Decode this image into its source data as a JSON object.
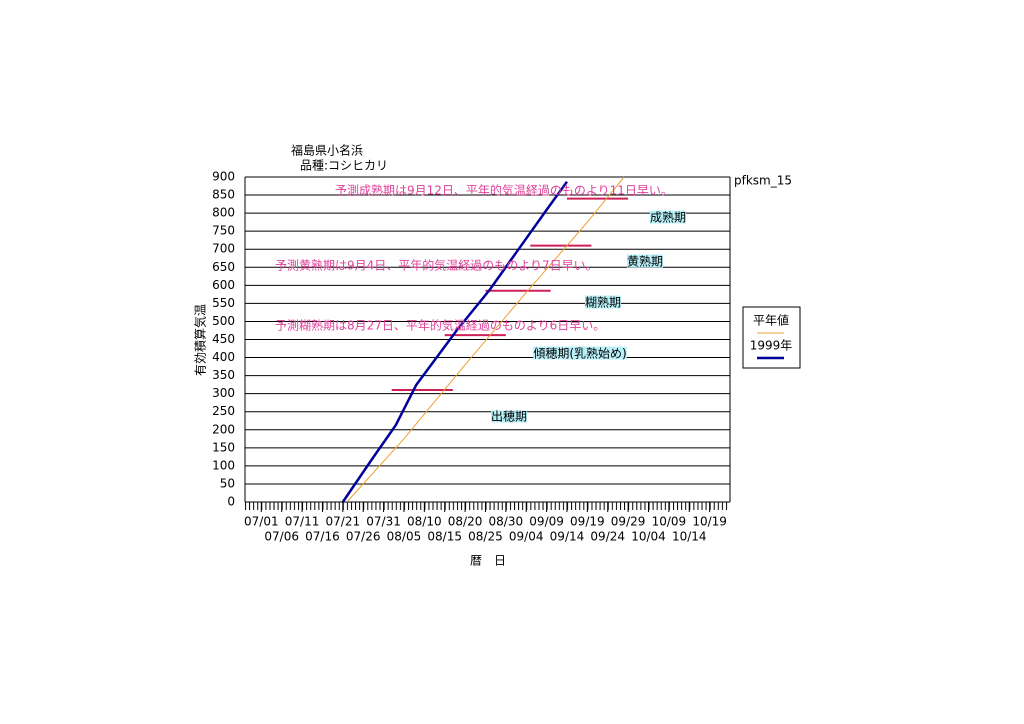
{
  "chart_data": {
    "type": "line",
    "title": "福島県小名浜",
    "subtitle": "品種:コシヒカリ",
    "code": "pfksm_15",
    "y_label": "有効積算気温",
    "x_label": "暦　日",
    "ylim": [
      0,
      900
    ],
    "yticks": [
      0,
      50,
      100,
      150,
      200,
      250,
      300,
      350,
      400,
      450,
      500,
      550,
      600,
      650,
      700,
      750,
      800,
      850,
      900
    ],
    "xlim": [
      "06/27",
      "10/24"
    ],
    "xticks": [
      "07/01",
      "07/06",
      "07/11",
      "07/16",
      "07/21",
      "07/26",
      "07/31",
      "08/05",
      "08/10",
      "08/15",
      "08/20",
      "08/25",
      "08/30",
      "09/04",
      "09/09",
      "09/14",
      "09/19",
      "09/24",
      "09/29",
      "10/04",
      "10/09",
      "10/14",
      "10/19"
    ],
    "grid": true,
    "series": [
      {
        "name": "平年値",
        "color": "#f0a030",
        "x": [
          "07/22",
          "08/05",
          "08/20",
          "09/04",
          "09/19",
          "09/28"
        ],
        "values": [
          0,
          175,
          380,
          580,
          775,
          900
        ]
      },
      {
        "name": "1999年",
        "color": "#00009c",
        "x": [
          "07/21",
          "07/28",
          "08/03",
          "08/08",
          "08/18",
          "08/26",
          "09/02",
          "09/09",
          "09/14"
        ],
        "values": [
          0,
          116,
          213,
          324,
          476,
          587,
          698,
          809,
          887
        ]
      }
    ],
    "stage_color": "#d0205a",
    "stage_markers": [
      {
        "value": 310,
        "x": [
          "08/02",
          "08/17"
        ]
      },
      {
        "value": 462,
        "x": [
          "08/15",
          "08/30"
        ]
      },
      {
        "value": 585,
        "x": [
          "08/25",
          "09/10"
        ]
      },
      {
        "value": 710,
        "x": [
          "09/05",
          "09/20"
        ]
      },
      {
        "value": 840,
        "x": [
          "09/14",
          "09/29"
        ]
      }
    ],
    "stage_labels": [
      "出穂期",
      "傾穂期(乳熟始め)",
      "糊熟期",
      "黄熟期",
      "成熟期"
    ],
    "annotations": [
      "予測成熟期は9月12日、平年的気温経過のものより11日早い。",
      "予測黄熟期は9月4日、平年的気温経過のものより7日早い。",
      "予測糊熟期は8月27日、平年的気温経過のものより6日早い。"
    ]
  }
}
